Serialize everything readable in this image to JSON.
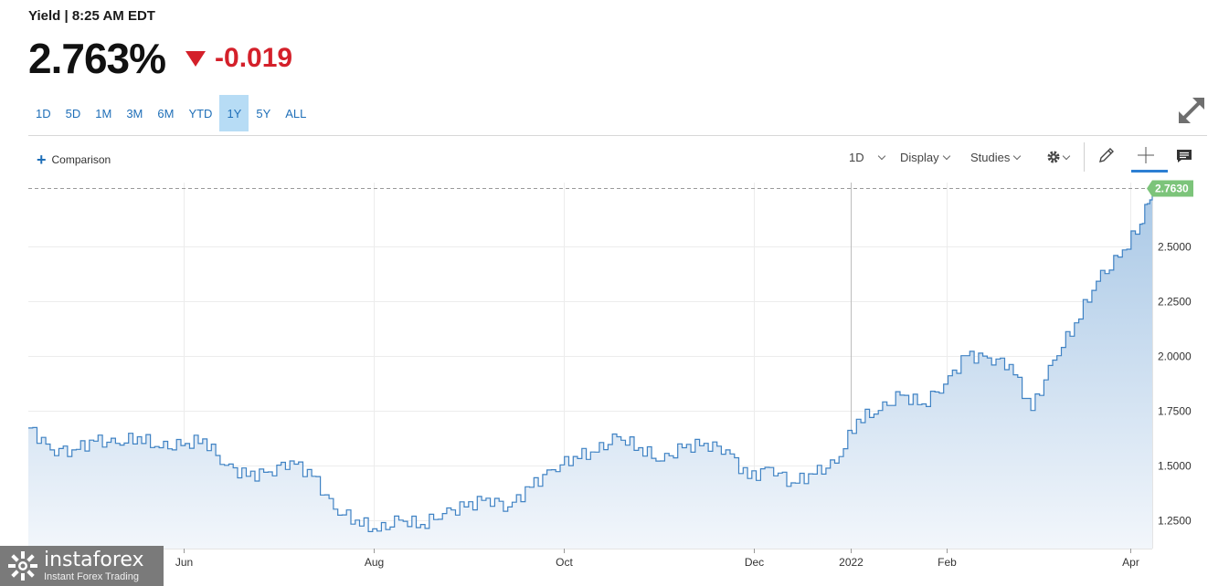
{
  "quote": {
    "label": "Yield | 8:25 AM EDT",
    "price": "2.763%",
    "change": "-0.019",
    "change_direction": "down",
    "change_color": "#d4202a"
  },
  "ranges": [
    {
      "label": "1D",
      "active": false
    },
    {
      "label": "5D",
      "active": false
    },
    {
      "label": "1M",
      "active": false
    },
    {
      "label": "3M",
      "active": false
    },
    {
      "label": "6M",
      "active": false
    },
    {
      "label": "YTD",
      "active": false
    },
    {
      "label": "1Y",
      "active": true
    },
    {
      "label": "5Y",
      "active": false
    },
    {
      "label": "ALL",
      "active": false
    }
  ],
  "toolbar": {
    "comparison_label": "Comparison",
    "interval_label": "1D",
    "display_label": "Display",
    "studies_label": "Studies",
    "icons": [
      "gear-icon",
      "pencil-icon",
      "crosshair-icon",
      "comment-icon",
      "fullscreen-icon"
    ]
  },
  "watermark": {
    "brand": "instaforex",
    "tagline": "Instant Forex Trading"
  },
  "colors": {
    "accent": "#1f6fb8",
    "line": "#3f82c4",
    "area_top": "#a9c8e6",
    "area_bottom": "#f2f6fb",
    "last_price_badge": "#7cc47a"
  },
  "chart_data": {
    "type": "area",
    "title": "",
    "xlabel": "",
    "ylabel": "",
    "x_tick_labels": [
      "Jun",
      "Aug",
      "Oct",
      "Dec",
      "2022",
      "Feb",
      "Apr"
    ],
    "y_tick_labels": [
      "2.5000",
      "2.2500",
      "2.0000",
      "1.7500",
      "1.5000",
      "1.2500"
    ],
    "y_ticks": [
      2.5,
      2.25,
      2.0,
      1.75,
      1.5,
      1.25
    ],
    "ylim": [
      1.12,
      2.79
    ],
    "last_value": 2.763,
    "last_value_label": "2.7630",
    "grid": true,
    "series": [
      {
        "x": [
          "2021-04-12",
          "2021-04-19",
          "2021-04-26",
          "2021-05-03",
          "2021-05-10",
          "2021-05-17",
          "2021-05-24",
          "2021-05-31",
          "2021-06-07",
          "2021-06-14",
          "2021-06-21",
          "2021-06-28",
          "2021-07-05",
          "2021-07-12",
          "2021-07-19",
          "2021-07-26",
          "2021-08-02",
          "2021-08-09",
          "2021-08-16",
          "2021-08-23",
          "2021-08-30",
          "2021-09-06",
          "2021-09-13",
          "2021-09-20",
          "2021-09-27",
          "2021-10-04",
          "2021-10-11",
          "2021-10-18",
          "2021-10-25",
          "2021-11-01",
          "2021-11-08",
          "2021-11-15",
          "2021-11-22",
          "2021-11-29",
          "2021-12-06",
          "2021-12-13",
          "2021-12-20",
          "2021-12-27",
          "2022-01-03",
          "2022-01-10",
          "2022-01-17",
          "2022-01-24",
          "2022-01-31",
          "2022-02-07",
          "2022-02-14",
          "2022-02-21",
          "2022-02-28",
          "2022-03-07",
          "2022-03-14",
          "2022-03-21",
          "2022-03-28",
          "2022-04-04",
          "2022-04-08"
        ],
        "values": [
          1.67,
          1.57,
          1.57,
          1.61,
          1.6,
          1.63,
          1.58,
          1.59,
          1.62,
          1.5,
          1.45,
          1.47,
          1.52,
          1.45,
          1.3,
          1.25,
          1.2,
          1.25,
          1.23,
          1.28,
          1.31,
          1.35,
          1.31,
          1.4,
          1.48,
          1.54,
          1.56,
          1.63,
          1.58,
          1.52,
          1.58,
          1.6,
          1.57,
          1.44,
          1.49,
          1.42,
          1.46,
          1.51,
          1.71,
          1.75,
          1.82,
          1.78,
          1.87,
          2.0,
          1.99,
          1.96,
          1.75,
          1.98,
          2.15,
          2.34,
          2.45,
          2.6,
          2.763
        ]
      }
    ]
  }
}
